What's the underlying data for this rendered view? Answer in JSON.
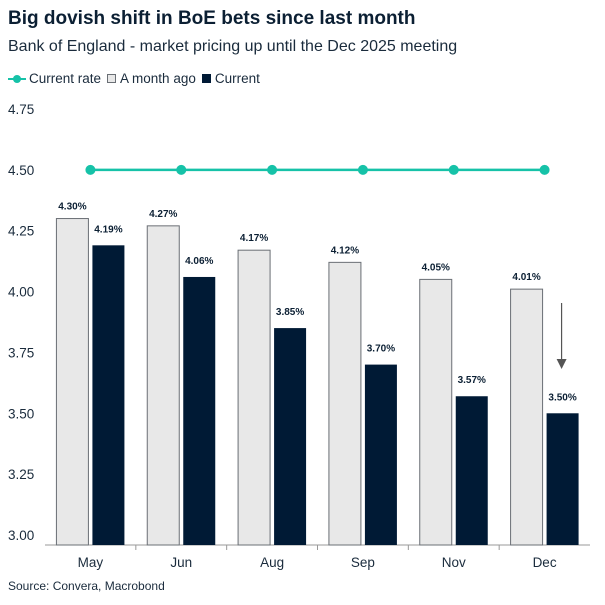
{
  "chart_data": {
    "type": "bar",
    "title": "Big dovish shift in BoE bets since last month",
    "subtitle": "Bank of England - market pricing up until the Dec 2025 meeting",
    "categories": [
      "May",
      "Jun",
      "Aug",
      "Sep",
      "Nov",
      "Dec"
    ],
    "series": [
      {
        "name": "A month ago",
        "kind": "bar",
        "values": [
          4.3,
          4.27,
          4.17,
          4.12,
          4.05,
          4.01
        ],
        "labels": [
          "4.30%",
          "4.27%",
          "4.17%",
          "4.12%",
          "4.05%",
          "4.01%"
        ],
        "color": "#e8e8e8"
      },
      {
        "name": "Current",
        "kind": "bar",
        "values": [
          4.19,
          4.06,
          3.85,
          3.7,
          3.57,
          3.5
        ],
        "labels": [
          "4.19%",
          "4.06%",
          "3.85%",
          "3.70%",
          "3.57%",
          "3.50%"
        ],
        "color": "#001a35"
      },
      {
        "name": "Current rate",
        "kind": "line",
        "values": [
          4.5,
          4.5,
          4.5,
          4.5,
          4.5,
          4.5
        ],
        "color": "#16c2a8"
      }
    ],
    "ylim": [
      3.0,
      4.75
    ],
    "yticks": [
      "3.00",
      "3.25",
      "3.50",
      "3.75",
      "4.00",
      "4.25",
      "4.50",
      "4.75"
    ],
    "xlabel": "",
    "ylabel": "",
    "grid": false,
    "legend": "top-left",
    "annotation": "down-arrow above Dec current bar"
  },
  "legend": {
    "line_label": "Current rate",
    "month_ago_label": "A month ago",
    "current_label": "Current"
  },
  "source": "Source: Convera, Macrobond"
}
